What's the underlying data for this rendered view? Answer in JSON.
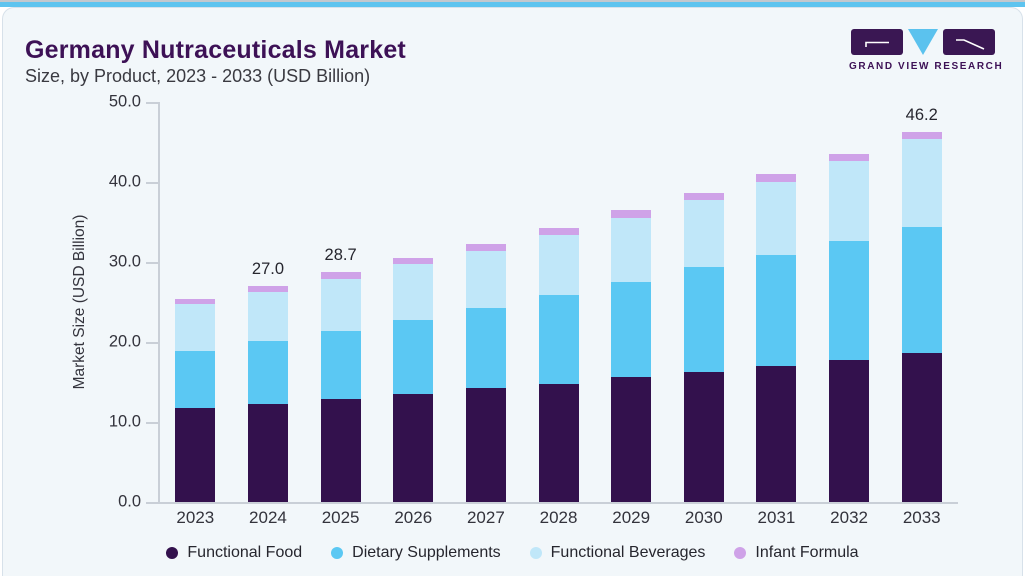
{
  "page": {
    "title": "Germany Nutraceuticals Market",
    "subtitle": "Size, by Product, 2023 - 2033 (USD Billion)",
    "brand": {
      "name": "GRAND VIEW RESEARCH"
    }
  },
  "colors": {
    "accent_strip": "#5ec4ef",
    "title_purple": "#3d1156",
    "card_bg": "#f2f7fa",
    "axis_line": "#c9cfd7"
  },
  "chart_data": {
    "type": "bar",
    "stacked": true,
    "title": "Germany Nutraceuticals Market Size, by Product, 2023 - 2033 (USD Billion)",
    "xlabel": "",
    "ylabel": "Market Size (USD Billion)",
    "ylim": [
      0,
      50
    ],
    "yticks": [
      "50.0",
      "40.0",
      "30.0",
      "20.0",
      "10.0",
      "0.0"
    ],
    "grid": false,
    "legend_position": "bottom",
    "categories": [
      "2023",
      "2024",
      "2025",
      "2026",
      "2027",
      "2028",
      "2029",
      "2030",
      "2031",
      "2032",
      "2033"
    ],
    "series": [
      {
        "name": "Functional Food",
        "color": "#33114d",
        "values": [
          11.8,
          12.3,
          12.9,
          13.5,
          14.2,
          14.7,
          15.6,
          16.3,
          17.0,
          17.7,
          18.6
        ]
      },
      {
        "name": "Dietary Supplements",
        "color": "#5bc8f3",
        "values": [
          7.1,
          7.8,
          8.5,
          9.2,
          10.0,
          11.2,
          11.9,
          13.1,
          13.9,
          14.9,
          15.8
        ]
      },
      {
        "name": "Functional Beverages",
        "color": "#c0e7f9",
        "values": [
          5.8,
          6.1,
          6.5,
          7.0,
          7.2,
          7.5,
          8.0,
          8.3,
          9.1,
          10.0,
          11.0
        ]
      },
      {
        "name": "Infant Formula",
        "color": "#cfa2e8",
        "values": [
          0.7,
          0.8,
          0.8,
          0.8,
          0.8,
          0.9,
          1.0,
          0.9,
          1.0,
          0.9,
          0.8
        ]
      }
    ],
    "totals": [
      25.4,
      27.0,
      28.7,
      30.5,
      32.2,
      34.3,
      36.5,
      38.6,
      41.0,
      43.5,
      46.2
    ],
    "bar_labels": [
      "",
      "27.0",
      "28.7",
      "",
      "",
      "",
      "",
      "",
      "",
      "",
      "46.2"
    ]
  }
}
